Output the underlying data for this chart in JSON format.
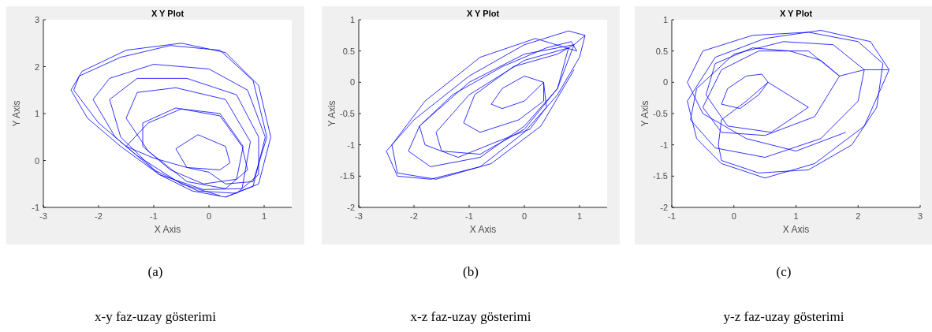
{
  "chart_data": [
    {
      "type": "line",
      "title": "X Y Plot",
      "xlabel": "X Axis",
      "ylabel": "Y Axis",
      "xlim": [
        -3,
        1.5
      ],
      "ylim": [
        -1,
        3
      ],
      "xticks": [
        -3,
        -2,
        -1,
        0,
        1
      ],
      "yticks": [
        -1,
        0,
        1,
        2,
        3
      ],
      "annotations": [
        "(a)",
        "x-y faz-uzay gösterimi"
      ],
      "series": [
        {
          "color": "#0000ff",
          "x": [
            0.3,
            0.9,
            1.12,
            0.9,
            0.3,
            -0.5,
            -1.5,
            -2.3,
            -2.5,
            -2.2,
            -1.6,
            -0.9,
            -0.3,
            0.3,
            0.8,
            1.02,
            0.7,
            0,
            -1,
            -1.8,
            -2.1,
            -1.7,
            -1,
            -0.2,
            0.5,
            0.9,
            0.9,
            0.5,
            -0.4,
            -1.3,
            -1.8,
            -1.6,
            -0.9,
            -0.1,
            0.6,
            0.75,
            0.3,
            -0.6,
            -1.3,
            -1.5,
            -1.1,
            -0.4,
            0.3,
            0.7,
            0.6,
            0.2,
            -0.6,
            -1.2,
            -1.2,
            -0.7,
            -0.1,
            0.5,
            0.62,
            0.2,
            -0.5,
            -1.1,
            -1.5,
            -1.0,
            -0.4,
            0.2,
            0.38,
            0.3,
            -0.2,
            -0.6,
            -0.4,
            0,
            0.3,
            0.8,
            1.05,
            0.8,
            0.2,
            -0.7,
            -1.6,
            -2.35,
            -2.45,
            -2.0,
            -1.3,
            -0.5,
            0.2
          ],
          "values": [
            -0.78,
            -0.5,
            0.5,
            1.6,
            2.3,
            2.5,
            2.35,
            1.9,
            1.5,
            0.9,
            0.3,
            -0.3,
            -0.65,
            -0.78,
            -0.55,
            0.5,
            1.5,
            1.95,
            2.05,
            1.75,
            1.3,
            0.5,
            -0.2,
            -0.65,
            -0.7,
            -0.3,
            0.5,
            1.4,
            1.75,
            1.75,
            1.3,
            0.5,
            -0.3,
            -0.62,
            -0.6,
            0.4,
            1.3,
            1.55,
            1.45,
            0.9,
            0.2,
            -0.45,
            -0.6,
            -0.2,
            0.3,
            0.95,
            1.12,
            0.8,
            0.3,
            -0.2,
            -0.5,
            -0.4,
            0.3,
            1.0,
            1.1,
            0.8,
            0.3,
            0.05,
            -0.15,
            -0.2,
            -0.05,
            0.3,
            0.55,
            0.25,
            -0.15,
            -0.25,
            -0.5,
            -0.45,
            0.5,
            1.7,
            2.35,
            2.45,
            2.2,
            1.8,
            1.5,
            0.8,
            0.1,
            -0.5,
            -0.75
          ]
        }
      ]
    },
    {
      "type": "line",
      "title": "X Y Plot",
      "xlabel": "X Axis",
      "ylabel": "Y Axis",
      "xlim": [
        -3,
        1.5
      ],
      "ylim": [
        -2,
        1
      ],
      "xticks": [
        -3,
        -2,
        -1,
        0,
        1
      ],
      "yticks": [
        -2,
        -1.5,
        -1,
        -0.5,
        0,
        0.5,
        1
      ],
      "annotations": [
        "(b)",
        "x-z faz-uzay gösterimi"
      ],
      "series": [
        {
          "color": "#0000ff",
          "x": [
            1.1,
            0.8,
            0,
            -1,
            -2,
            -2.5,
            -2.3,
            -1.7,
            -0.8,
            0,
            0.6,
            1.0,
            1.1,
            0.9,
            0,
            -1,
            -1.9,
            -2.1,
            -1.7,
            -0.8,
            0,
            0.6,
            0.9,
            0.8,
            0,
            -1,
            -1.6,
            -1.5,
            -0.8,
            0,
            0.6,
            0.8,
            0.6,
            -0.2,
            -0.9,
            -1.1,
            -0.8,
            -0.1,
            0.35,
            0.35,
            0,
            -0.4,
            -0.6,
            -0.4,
            0,
            0.35,
            0.4,
            0.1,
            -0.5,
            -1.2,
            -1.8,
            -1.9,
            -1.3,
            -0.4,
            0.4,
            0.85,
            0.95,
            0.2,
            -0.8,
            -1.8,
            -2.4,
            -2.3,
            -1.6,
            -0.6,
            0.3,
            0.9
          ],
          "values": [
            0.75,
            0.82,
            0.6,
            0.1,
            -0.6,
            -1.1,
            -1.5,
            -1.55,
            -1.35,
            -0.8,
            -0.2,
            0.4,
            0.75,
            0.6,
            0.45,
            0,
            -0.7,
            -1.1,
            -1.35,
            -1.2,
            -0.7,
            -0.1,
            0.6,
            0.55,
            0.35,
            -0.2,
            -0.8,
            -1.1,
            -1.15,
            -0.75,
            -0.1,
            0.55,
            0.45,
            0.25,
            -0.2,
            -0.65,
            -0.8,
            -0.6,
            -0.3,
            0,
            0.1,
            -0.1,
            -0.35,
            -0.42,
            -0.3,
            0,
            -0.4,
            -0.75,
            -0.95,
            -1.2,
            -1.0,
            -0.7,
            -0.2,
            0.25,
            0.55,
            0.65,
            0.5,
            0.7,
            0.4,
            -0.3,
            -1.0,
            -1.45,
            -1.55,
            -1.3,
            -0.7,
            0.2
          ]
        }
      ]
    },
    {
      "type": "line",
      "title": "X Y Plot",
      "xlabel": "X Axis",
      "ylabel": "Y Axis",
      "xlim": [
        -1,
        3
      ],
      "ylim": [
        -2,
        1
      ],
      "xticks": [
        -1,
        0,
        1,
        2,
        3
      ],
      "yticks": [
        -2,
        -1.5,
        -1,
        -0.5,
        0,
        0.5,
        1
      ],
      "annotations": [
        "(c)",
        "y-z faz-uzay gösterimi"
      ],
      "series": [
        {
          "color": "#0000ff",
          "x": [
            2.5,
            2.2,
            1.4,
            0.5,
            -0.3,
            -0.75,
            -0.6,
            -0.2,
            0.5,
            1.3,
            2.1,
            2.5,
            2.1,
            1.6,
            0.8,
            0,
            -0.6,
            -0.7,
            -0.3,
            0.5,
            1.4,
            2.0,
            2.1,
            1.7,
            1.2,
            0.4,
            -0.2,
            -0.5,
            -0.2,
            0.5,
            1.3,
            1.7,
            1.4,
            0.9,
            0.3,
            -0.3,
            -0.45,
            -0.1,
            0.6,
            1.2,
            0.55,
            0.45,
            0.2,
            -0.1,
            -0.2,
            0.1,
            0.4,
            0.55,
            0.2,
            -0.2,
            -0.25,
            -0.2,
            0.4,
            1.2,
            1.9,
            2.3,
            2.4,
            2.0,
            1.2,
            0.3,
            -0.5,
            -0.75,
            -0.5,
            0.2,
            1.0,
            1.8
          ],
          "values": [
            0.2,
            0.65,
            0.83,
            0.7,
            0.4,
            -0.3,
            -0.9,
            -1.3,
            -1.53,
            -1.3,
            -0.7,
            0.2,
            0.2,
            0.6,
            0.65,
            0.45,
            -0.1,
            -0.6,
            -1.05,
            -1.2,
            -0.9,
            -0.3,
            0.2,
            0.1,
            0.5,
            0.5,
            0.2,
            -0.4,
            -0.8,
            -0.85,
            -0.55,
            0.1,
            0.35,
            0.5,
            0.55,
            0.3,
            -0.2,
            -0.7,
            -0.8,
            -0.4,
            0,
            0.13,
            0.1,
            -0.1,
            -0.35,
            -0.42,
            -0.2,
            0,
            -0.3,
            -0.6,
            -1.0,
            -1.25,
            -1.45,
            -1.4,
            -1.0,
            -0.4,
            0.3,
            0.65,
            0.8,
            0.75,
            0.5,
            0,
            -0.5,
            -0.9,
            -1.1,
            -0.8
          ]
        }
      ]
    }
  ]
}
